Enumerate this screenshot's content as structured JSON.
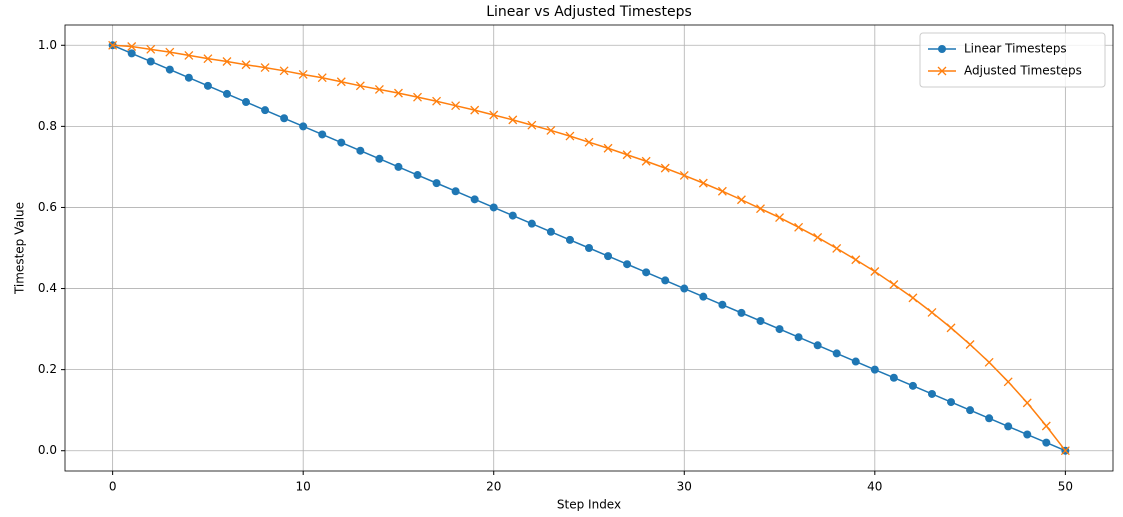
{
  "chart_data": {
    "type": "line",
    "title": "Linear vs Adjusted Timesteps",
    "x_label": "Step Index",
    "y_label": "Timestep Value",
    "x": [
      0,
      1,
      2,
      3,
      4,
      5,
      6,
      7,
      8,
      9,
      10,
      11,
      12,
      13,
      14,
      15,
      16,
      17,
      18,
      19,
      20,
      21,
      22,
      23,
      24,
      25,
      26,
      27,
      28,
      29,
      30,
      31,
      32,
      33,
      34,
      35,
      36,
      37,
      38,
      39,
      40,
      41,
      42,
      43,
      44,
      45,
      46,
      47,
      48,
      49,
      50
    ],
    "series": [
      {
        "name": "Linear Timesteps",
        "color": "#1f77b4",
        "marker": "o",
        "values": [
          1.0,
          0.98,
          0.96,
          0.94,
          0.92,
          0.9,
          0.88,
          0.86,
          0.84,
          0.82,
          0.8,
          0.78,
          0.76,
          0.74,
          0.72,
          0.7,
          0.68,
          0.66,
          0.64,
          0.62,
          0.6,
          0.58,
          0.56,
          0.54,
          0.52,
          0.5,
          0.48,
          0.46,
          0.44,
          0.42,
          0.4,
          0.38,
          0.36,
          0.34,
          0.32,
          0.3,
          0.28,
          0.26,
          0.24,
          0.22,
          0.2,
          0.18,
          0.16,
          0.14,
          0.12,
          0.1,
          0.08,
          0.06,
          0.04,
          0.02,
          0.0
        ]
      },
      {
        "name": "Adjusted Timesteps",
        "color": "#ff7f0e",
        "marker": "x",
        "values": [
          1.0,
          0.997,
          0.99,
          0.983,
          0.975,
          0.967,
          0.96,
          0.952,
          0.945,
          0.937,
          0.928,
          0.92,
          0.91,
          0.9,
          0.891,
          0.882,
          0.872,
          0.862,
          0.851,
          0.84,
          0.828,
          0.816,
          0.803,
          0.79,
          0.776,
          0.761,
          0.746,
          0.73,
          0.714,
          0.697,
          0.679,
          0.66,
          0.64,
          0.619,
          0.597,
          0.575,
          0.551,
          0.526,
          0.499,
          0.471,
          0.442,
          0.41,
          0.377,
          0.341,
          0.303,
          0.262,
          0.218,
          0.17,
          0.118,
          0.061,
          0.0
        ]
      }
    ],
    "xlim": [
      -2.5,
      52.5
    ],
    "xticks": [
      0,
      10,
      20,
      30,
      40,
      50
    ],
    "ylim": [
      -0.05,
      1.05
    ],
    "yticks": [
      {
        "value": 0,
        "label": "0.0"
      },
      {
        "value": 0.2,
        "label": "0.2"
      },
      {
        "value": 0.4,
        "label": "0.4"
      },
      {
        "value": 0.6,
        "label": "0.6"
      },
      {
        "value": 0.8,
        "label": "0.8"
      },
      {
        "value": 1,
        "label": "1.0"
      }
    ],
    "grid": true,
    "legend": "upper right"
  }
}
